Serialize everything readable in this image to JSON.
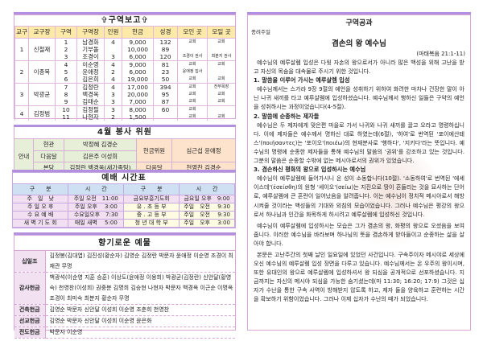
{
  "district": {
    "title": "✞구역보고✞",
    "headers": [
      "교구",
      "교구장",
      "구역",
      "구역장",
      "인원",
      "헌금",
      "성경",
      "모인 곳",
      "모일 곳"
    ],
    "groups": [
      {
        "parish": "1",
        "leader": "신철재",
        "rows": [
          [
            "1",
            "남경화",
            "4",
            "9,000",
            "132",
            "교회",
            "교회"
          ],
          [
            "2",
            "기부돌",
            "",
            "10,000",
            "89",
            "",
            ""
          ],
          [
            "3",
            "조경이",
            "3",
            "6,000",
            "120",
            "조경이 권사",
            "최분지 권사"
          ]
        ]
      },
      {
        "parish": "2",
        "leader": "이종목",
        "rows": [
          [
            "4",
            "이순영",
            "4",
            "9,000",
            "81",
            "교회",
            "교회"
          ],
          [
            "5",
            "윤애정",
            "2",
            "6,000",
            "23",
            "윤애정 집사",
            ""
          ],
          [
            "6",
            "김은희",
            "4",
            "19,000",
            "50",
            "교회",
            "교회"
          ]
        ]
      },
      {
        "parish": "3",
        "leader": "박광균",
        "rows": [
          [
            "7",
            "김정란",
            "4",
            "17,000",
            "394",
            "교회",
            "전부목장"
          ],
          [
            "8",
            "백경옥",
            "3",
            "20,000",
            "95",
            "교회",
            "교회"
          ],
          [
            "9",
            "김태순",
            "3",
            "7,000",
            "87",
            "교회",
            "교회"
          ]
        ]
      },
      {
        "parish": "4",
        "leader": "김정범",
        "rows": [
          [
            "10",
            "김정필",
            "3",
            "8,000",
            "60",
            "교회",
            ""
          ],
          [
            "11",
            "나현자",
            "2",
            "1,500",
            "",
            "교회",
            "교회"
          ]
        ]
      }
    ]
  },
  "service": {
    "title": "4월 봉사 위원",
    "guide": "안내",
    "rows": [
      [
        "현관",
        "박정혜 김경순"
      ],
      [
        "다음달",
        "김은주 이성희"
      ],
      [
        "본당",
        "김정란 백경옥(새가족팀)"
      ]
    ],
    "offering_label": "헌금위원",
    "offering_names": "심근섭 윤애정",
    "next_label": "다음달",
    "next_names": "천영찬 김경순"
  },
  "worship": {
    "title": "예배 시간표",
    "headers": [
      "구　　분",
      "시　　간",
      "구　　분",
      "시　　간"
    ],
    "rows": [
      [
        "주　일　낮",
        "주일 오전　11:00",
        "금요부흥기도회",
        "금요일 오후　9:00"
      ],
      [
        "주 일 오 후",
        "주일 오후　 3:00",
        "유 . 초 등 부",
        "주일　오전　 9:30"
      ],
      [
        "수 요 예 배",
        "수요일오후　7:30",
        "중 . 고 등 부",
        "주일　오전　 9:30"
      ],
      [
        "새 벽 기 도 회",
        "매일 새벽　 5:00",
        "청 년 대 학 부",
        "주일　오후　 3:00"
      ]
    ]
  },
  "offering": {
    "title": "향기로운 예물",
    "rows": [
      {
        "label": "십일조",
        "text": "김정봉(김대엽) 김진성(황순자) 김영순 김정란 박문자 윤애정 이순영 조경이 최재관 무명"
      },
      {
        "label": "감사헌금",
        "text": "백광석(이순영 지훈 승훈) 이상도(윤애정 이용희) 박광균(김정란) 신안달(황영숙) 천영찬(이성희) 권중분 김명희 김승현 나현자 박문자 백경옥 이근순 이명옥 조경이 최미숙 최분지 황순자 무명"
      },
      {
        "label": "건축헌금",
        "text": "김영순 박문자 신안달 이성희 이순영 조춘희 천영찬"
      },
      {
        "label": "선교헌금",
        "text": "김영순 박문자 신안달 이성희 이순영 윤은화"
      },
      {
        "label": "전도헌금",
        "text": "박문자 이순영"
      }
    ]
  },
  "lesson": {
    "title": "구역공과",
    "week": "종려주일",
    "heading": "겸손의 왕 예수님",
    "reference": "(마태복음 21:1-11)",
    "intro": "예수님의 예루살렘 입성은 다윗 자손의 왕으로서가 아니라 많은 백성을 위해 고난을 받고 자신의 목숨을 대속물로 주시기 위한 것입니다.",
    "h1": "1. 말씀을 이루어 가시는 예루살렘 입성",
    "p1": "예수님께서는 스가랴 9장 9절의 예언을 성취하기 위하여 화려한 마차나 건장한 말이 아닌 나귀 새끼를 타고 예루살렘에 입성하셨습니다. 예수님께서 행하신 일들은 구약의 예언을 성취하시는 과정이었습니다(4-5절).",
    "h2": "2. 말씀에 순종하는 제자들",
    "p2": "예수님은 두 제자에게 맞은편 마을로 가서 나귀와 나귀 새끼를 끌고 오라고 명령하십니다. 이에 제자들은 예수께서 명하신 대로 하였는데(6절), '하여'로 번역된 '포이에산테스'(ποιήσαντες)는 '포이오'(ποιέω)의 현재분사로 '행하다', '지키다'라는 뜻입니다. 예수님의 명령에 순종한 제자들을 통해 예수님의 말씀의 '권위'를 강조하고 있는 것입니다. 그분의 말씀은 순종할 수밖에 없는 메시아로서의 권위가 있었습니다.",
    "h3": "3. 겸손하신 평화의 왕으로 입성하시는 예수님",
    "p3": "예수님이 예루살렘에 들어가시니 온 성이 소동합니다(10절). '소동하여'로 번역된 '에세이스데'(ἐσείσθη)의 원형 '세이오'(σείω)는 지진으로 땅이 흔들리는 것을 묘사하는 단어로, 예루살렘에 큰 혼란이 일어났음을 알려줍니다. 이는 예수님이 정치적 메시아로서 해방시켜줄 것이라는 백성들의 기대와 외침의 모습이었습니다. 그러나 예수님은 평강의 왕으로서 하나님과 인간을 화목하게 하시려고 예루살렘에 입성하신 것입니다.",
    "p4": "예수님이 예루살렘에 입성하시는 모습은 그가 겸손의 왕, 화평의 왕으로 오셨음을 보여줍니다. 이러한 예수님을 바라보며 하나님의 뜻을 겸손하게 받아들이고 순종하는 삶을 살아야 합니다.",
    "p5": "본문은 고난주간의 첫째 날인 일요일에 있었던 사건입니다. 구속주이자 메시야로 세상에 오신 예수님의 예루살렘 입성 장면을 다루고 있습니다. 예수님께서는 온 우주의 왕이시며, 또한 유대인의 왕으로 예루살렘에 입성하셔서 왕 되심을 공개적으로 선포하셨습니다. 지금까지는 자신의 메시야 되심을 가능한 숨기셨는데(마 11:30; 16:20; 17:9) 그것은 십자가 수난을 통한 구속 사역이 방해받지 않도록 하고, 제자 들을 양육하고 훈련하는 시간을 확보하기 위함이었습니다. 그러나 이제 십자가 수난의 때가 되었습니다."
  },
  "colors": {
    "accent": "#b38fe0",
    "border": "#d9a6d9",
    "header_yellow": "#fde9a8"
  }
}
